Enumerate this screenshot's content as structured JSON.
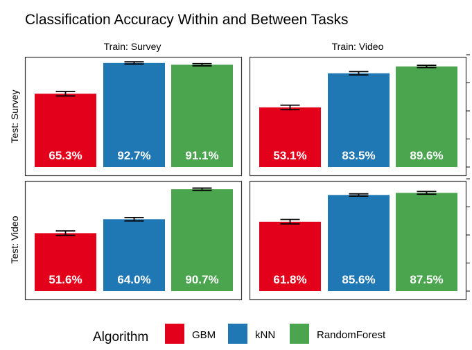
{
  "chart_data": {
    "type": "bar",
    "title": "Classification Accuracy Within and Between Tasks",
    "col_facets": [
      "Train: Survey",
      "Train: Video"
    ],
    "row_facets": [
      "Test: Survey",
      "Test: Video"
    ],
    "categories": [
      "GBM",
      "kNN",
      "RandomForest"
    ],
    "colors": [
      "#e3001b",
      "#1f77b4",
      "#4aa54e"
    ],
    "legend": {
      "title": "Algorithm",
      "position": "bottom"
    },
    "ylim": [
      0,
      1
    ],
    "panels": [
      {
        "train": "Survey",
        "test": "Survey",
        "values": [
          0.653,
          0.927,
          0.911
        ],
        "errors": [
          0.02,
          0.01,
          0.01
        ],
        "labels": [
          "65.3%",
          "92.7%",
          "91.1%"
        ]
      },
      {
        "train": "Video",
        "test": "Survey",
        "values": [
          0.531,
          0.835,
          0.896
        ],
        "errors": [
          0.02,
          0.015,
          0.01
        ],
        "labels": [
          "53.1%",
          "83.5%",
          "89.6%"
        ]
      },
      {
        "train": "Survey",
        "test": "Video",
        "values": [
          0.516,
          0.64,
          0.907
        ],
        "errors": [
          0.02,
          0.015,
          0.01
        ],
        "labels": [
          "51.6%",
          "64.0%",
          "90.7%"
        ]
      },
      {
        "train": "Video",
        "test": "Video",
        "values": [
          0.618,
          0.856,
          0.875
        ],
        "errors": [
          0.02,
          0.01,
          0.012
        ],
        "labels": [
          "61.8%",
          "85.6%",
          "87.5%"
        ]
      }
    ]
  }
}
